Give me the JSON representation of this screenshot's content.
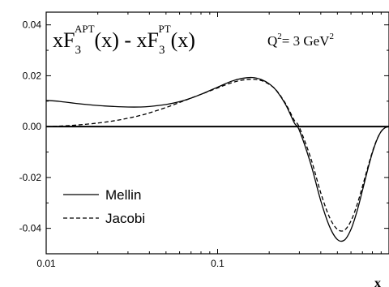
{
  "chart_data": {
    "type": "line",
    "title_main": "xF",
    "title_sub1": "3",
    "title_sup1": "APT",
    "title_mid": "(x) - xF",
    "title_sub2": "3",
    "title_sup2": "PT",
    "title_end": "(x)",
    "annotation_q": "Q",
    "annotation_q_sup": "2",
    "annotation_q_val": "= 3 GeV",
    "annotation_q_sup2": "2",
    "xlabel": "x",
    "ylabel": "",
    "xscale": "log",
    "xlim": [
      0.01,
      1.0
    ],
    "ylim": [
      -0.05,
      0.045
    ],
    "x_ticks": [
      0.01,
      0.1
    ],
    "x_tick_labels": [
      "0.01",
      "0.1"
    ],
    "y_ticks": [
      0.04,
      0.02,
      0.0,
      -0.02,
      -0.04
    ],
    "y_tick_labels": [
      "0.04",
      "0.02",
      "0.00",
      "-0.02",
      "-0.04"
    ],
    "legend_position": "bottom-left",
    "series": [
      {
        "name": "Mellin",
        "style": "solid",
        "x": [
          0.01,
          0.012,
          0.015,
          0.02,
          0.025,
          0.03,
          0.035,
          0.04,
          0.05,
          0.06,
          0.07,
          0.08,
          0.1,
          0.12,
          0.14,
          0.16,
          0.18,
          0.2,
          0.22,
          0.25,
          0.28,
          0.3,
          0.35,
          0.4,
          0.45,
          0.5,
          0.55,
          0.6,
          0.65,
          0.7,
          0.75,
          0.8,
          0.85,
          0.9,
          0.95,
          1.0
        ],
        "y": [
          0.0103,
          0.0099,
          0.0091,
          0.0083,
          0.0079,
          0.0077,
          0.0077,
          0.0079,
          0.0087,
          0.0098,
          0.0112,
          0.0127,
          0.0155,
          0.0178,
          0.019,
          0.0193,
          0.0185,
          0.0168,
          0.0142,
          0.0085,
          0.0015,
          -0.0015,
          -0.0148,
          -0.0292,
          -0.0393,
          -0.0444,
          -0.0446,
          -0.0404,
          -0.0334,
          -0.0251,
          -0.0171,
          -0.0103,
          -0.0052,
          -0.0019,
          -0.0004,
          0.0
        ]
      },
      {
        "name": "Jacobi",
        "style": "dashed",
        "x": [
          0.01,
          0.012,
          0.015,
          0.02,
          0.025,
          0.03,
          0.035,
          0.04,
          0.05,
          0.06,
          0.07,
          0.08,
          0.1,
          0.12,
          0.14,
          0.16,
          0.18,
          0.2,
          0.22,
          0.25,
          0.28,
          0.3,
          0.35,
          0.4,
          0.45,
          0.5,
          0.55,
          0.6,
          0.65,
          0.7,
          0.75,
          0.8,
          0.85,
          0.9,
          0.95,
          1.0
        ],
        "y": [
          0.0,
          0.0002,
          0.0006,
          0.0014,
          0.0023,
          0.0033,
          0.0043,
          0.0054,
          0.0075,
          0.0095,
          0.0112,
          0.0127,
          0.0152,
          0.0172,
          0.0183,
          0.0186,
          0.0181,
          0.0166,
          0.0143,
          0.0089,
          0.0025,
          -0.0003,
          -0.0125,
          -0.0261,
          -0.0357,
          -0.0404,
          -0.0407,
          -0.0371,
          -0.0309,
          -0.0235,
          -0.0163,
          -0.0099,
          -0.0051,
          -0.0019,
          -0.0004,
          0.0
        ]
      }
    ]
  }
}
